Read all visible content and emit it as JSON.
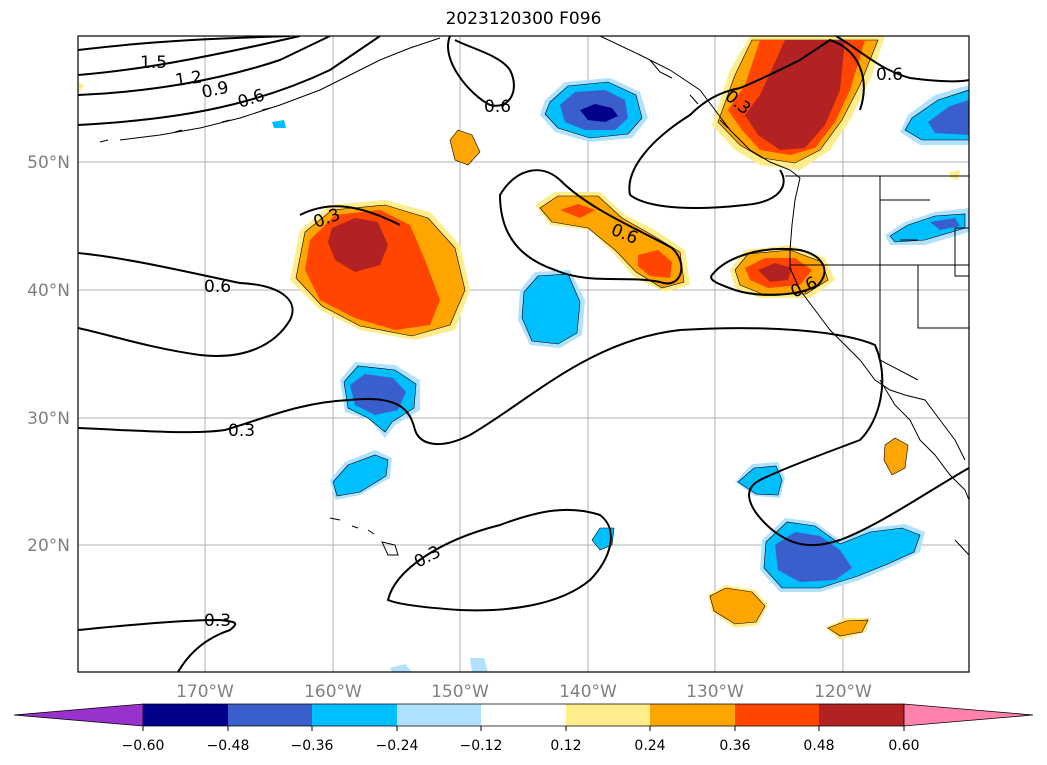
{
  "title": "2023120300 F096",
  "lat_labels": [
    {
      "text": "50°N",
      "lat": 50
    },
    {
      "text": "40°N",
      "lat": 40
    },
    {
      "text": "30°N",
      "lat": 30
    },
    {
      "text": "20°N",
      "lat": 20
    }
  ],
  "lon_labels": [
    {
      "text": "170°W",
      "lon": -170
    },
    {
      "text": "160°W",
      "lon": -160
    },
    {
      "text": "150°W",
      "lon": -150
    },
    {
      "text": "140°W",
      "lon": -140
    },
    {
      "text": "130°W",
      "lon": -130
    },
    {
      "text": "120°W",
      "lon": -120
    }
  ],
  "contour_labels": [
    "1.5",
    "1.2",
    "0.9",
    "0.6",
    "0.6",
    "0.3",
    "0.6",
    "0.3",
    "0.6",
    "0.3",
    "0.3",
    "0.3",
    "0.6",
    "0.6"
  ],
  "colorbar": {
    "ticks": [
      "−0.60",
      "−0.48",
      "−0.36",
      "−0.24",
      "−0.12",
      "0.12",
      "0.24",
      "0.36",
      "0.48",
      "0.60"
    ],
    "colors": [
      "#9932cc",
      "#00008b",
      "#3a5fcd",
      "#00bfff",
      "#b0e2ff",
      "#ffffff",
      "#ffec8b",
      "#ffa500",
      "#ff4500",
      "#b22222",
      "#ff82ab"
    ]
  },
  "fill_colors": {
    "light_blue": "#b0e2ff",
    "cyan": "#00bfff",
    "blue": "#3a5fcd",
    "navy": "#00008b",
    "yellow": "#ffec8b",
    "orange": "#ffa500",
    "red_orange": "#ff4500",
    "dark_red": "#b22222"
  }
}
